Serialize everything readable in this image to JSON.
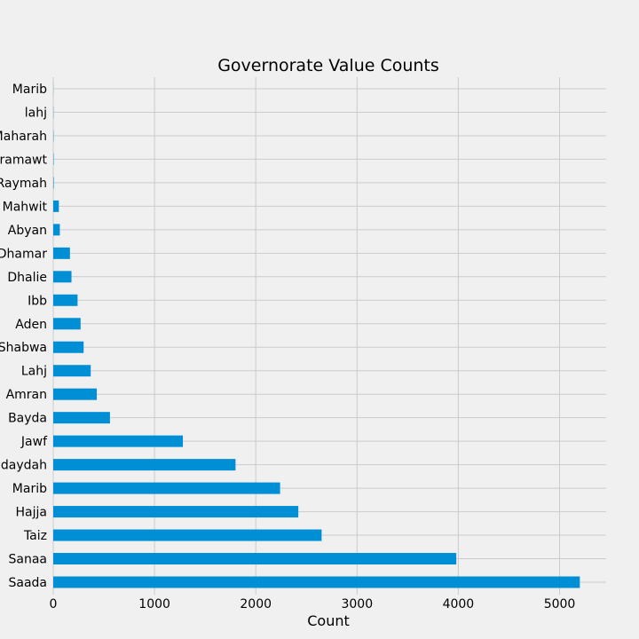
{
  "chart_data": {
    "type": "bar",
    "orientation": "horizontal",
    "title": "Governorate Value Counts",
    "xlabel": "Count",
    "ylabel": "",
    "xlim": [
      0,
      5460
    ],
    "xticks": [
      0,
      1000,
      2000,
      3000,
      4000,
      5000
    ],
    "grid": true,
    "legend": "none",
    "bar_color": "#008fd5",
    "background_color": "#f0f0f0",
    "grid_color": "#cbcbcb",
    "categories": [
      "Saada",
      "Sanaa",
      "Taiz",
      "Hajja",
      "Marib",
      "Hudaydah",
      "Jawf",
      "Bayda",
      "Amran",
      "Lahj",
      "Shabwa",
      "Aden",
      "Ibb",
      "Dhalie",
      "Dhamar",
      "Abyan",
      "Mahwit",
      "Raymah",
      "Hadramawt",
      "AL Maharah",
      "lahj",
      "Marib"
    ],
    "values": [
      5200,
      3980,
      2650,
      2420,
      2240,
      1800,
      1280,
      560,
      430,
      370,
      300,
      270,
      240,
      180,
      165,
      65,
      55,
      5,
      4,
      3,
      2,
      1
    ]
  }
}
